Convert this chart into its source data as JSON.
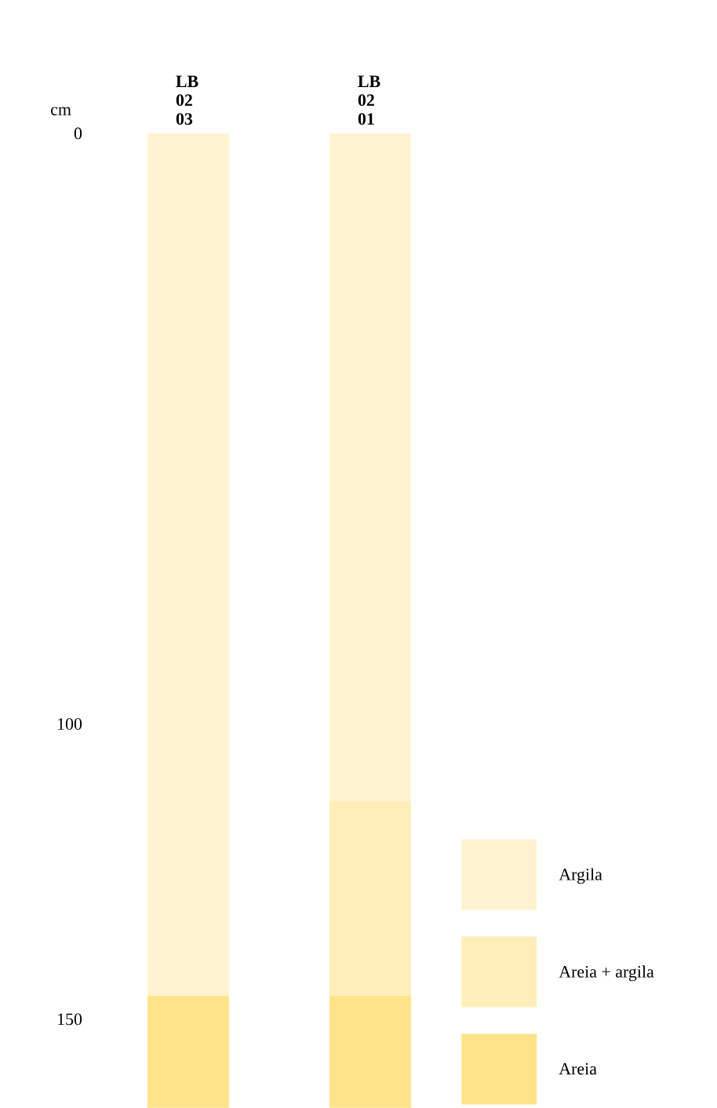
{
  "chart_data": {
    "type": "bar",
    "stacked": true,
    "ylabel": "cm",
    "categories": [
      "LB 02 03",
      "LB 02 01"
    ],
    "series": [
      {
        "name": "Argila",
        "color": "#fff3d1",
        "values": [
          146,
          113
        ]
      },
      {
        "name": "Areia + argila",
        "color": "#ffeeb8",
        "values": [
          null,
          33
        ]
      },
      {
        "name": "Areia",
        "color": "#ffe38a",
        "values": [
          19,
          19
        ]
      }
    ],
    "ylim": [
      165,
      0
    ],
    "yticks": [
      0,
      100,
      150
    ],
    "grid": false,
    "legend": "bottom right"
  }
}
